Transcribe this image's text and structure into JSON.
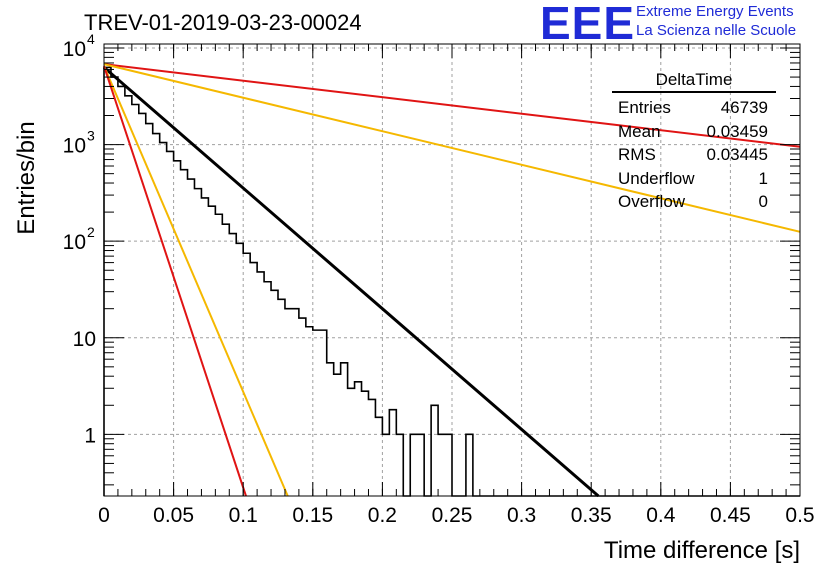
{
  "chart_data": {
    "type": "line",
    "title": "TREV-01-2019-03-23-00024",
    "xlabel": "Time difference [s]",
    "ylabel": "Entries/bin",
    "xlim": [
      0,
      0.5
    ],
    "ylim": [
      0.23,
      11000
    ],
    "yscale": "log",
    "grid": true,
    "x_ticks": [
      "0",
      "0.05",
      "0.1",
      "0.15",
      "0.2",
      "0.25",
      "0.3",
      "0.35",
      "0.4",
      "0.45",
      "0.5"
    ],
    "y_ticks": [
      {
        "value": 1,
        "label": "1"
      },
      {
        "value": 10,
        "label": "10"
      },
      {
        "value": 100,
        "label": "10",
        "exp": "2"
      },
      {
        "value": 1000,
        "label": "10",
        "exp": "3"
      },
      {
        "value": 10000,
        "label": "10",
        "exp": "4"
      }
    ],
    "histogram": {
      "name": "DeltaTime",
      "bin_width": 0.005,
      "values": [
        6300,
        5000,
        4000,
        3200,
        2600,
        2100,
        1650,
        1300,
        1050,
        850,
        680,
        550,
        440,
        350,
        280,
        230,
        190,
        150,
        120,
        95,
        75,
        60,
        48,
        38,
        31,
        25,
        20,
        20,
        16,
        13,
        12,
        12,
        5.5,
        4.2,
        5.5,
        3,
        3.5,
        2.8,
        2.3,
        1.5,
        1,
        1.8,
        1,
        0,
        1,
        1,
        0,
        2,
        1,
        1,
        0,
        0,
        1,
        0,
        0,
        0,
        0,
        0,
        0,
        0,
        0,
        0,
        0,
        0,
        0,
        0,
        0,
        0,
        0,
        0,
        0,
        0,
        0,
        0,
        0,
        0,
        0,
        0,
        0,
        0,
        0,
        0,
        0,
        0,
        0,
        0,
        0,
        0,
        0,
        0,
        0,
        0,
        0,
        0,
        0,
        0,
        0,
        0,
        0,
        0
      ]
    },
    "series": [
      {
        "color": "#000000",
        "x": [
          0,
          0.36
        ],
        "y": [
          6300,
          0.2
        ]
      },
      {
        "color": "#e01414",
        "x": [
          0,
          0.5
        ],
        "y": [
          6800,
          950
        ]
      },
      {
        "color": "#f5b800",
        "x": [
          0,
          0.5
        ],
        "y": [
          6800,
          125
        ]
      },
      {
        "color": "#f5b800",
        "x": [
          0,
          0.132
        ],
        "y": [
          6500,
          0.23
        ]
      },
      {
        "color": "#e01414",
        "x": [
          0,
          0.102
        ],
        "y": [
          6500,
          0.23
        ]
      }
    ],
    "stats_box": {
      "title": "DeltaTime",
      "rows": [
        {
          "label": "Entries",
          "value": "46739"
        },
        {
          "label": "Mean",
          "value": "0.03459"
        },
        {
          "label": "RMS",
          "value": "0.03445"
        },
        {
          "label": "Underflow",
          "value": "1"
        },
        {
          "label": "Overflow",
          "value": "0"
        }
      ]
    }
  },
  "logo": {
    "mark": "EEE",
    "line1": "Extreme Energy Events",
    "line2": "La Scienza nelle Scuole"
  }
}
